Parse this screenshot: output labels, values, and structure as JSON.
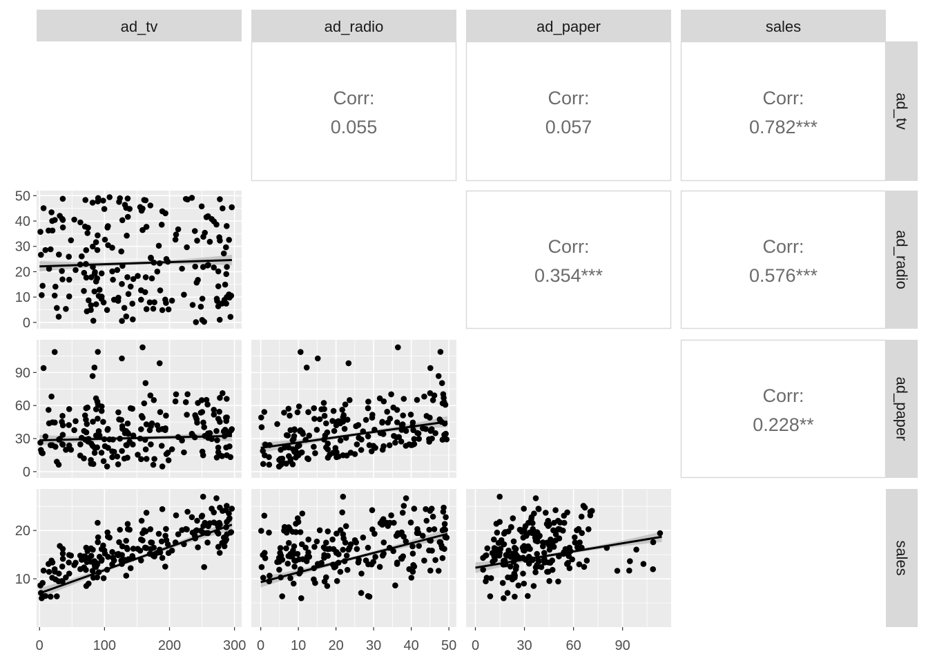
{
  "chart_data": {
    "type": "scatter",
    "variables": [
      "ad_tv",
      "ad_radio",
      "ad_paper",
      "sales"
    ],
    "axis_ranges": {
      "ad_tv": [
        -4.5,
        311
      ],
      "ad_radio": [
        -2.5,
        52
      ],
      "ad_paper": [
        -5.7,
        119.7
      ],
      "sales": [
        0,
        28.6
      ]
    },
    "ticks": {
      "ad_tv": {
        "x": [
          "0",
          "100",
          "200",
          "300"
        ],
        "y": []
      },
      "ad_radio": {
        "x": [
          "0",
          "10",
          "20",
          "30",
          "40",
          "50"
        ],
        "y": [
          "0",
          "10",
          "20",
          "30",
          "40",
          "50"
        ]
      },
      "ad_paper": {
        "x": [
          "0",
          "30",
          "60",
          "90"
        ],
        "y": [
          "0",
          "30",
          "60",
          "90"
        ]
      },
      "sales": {
        "x": [],
        "y": [
          "10",
          "20"
        ]
      }
    },
    "correlations": [
      {
        "row": "ad_tv",
        "col": "ad_radio",
        "label": "Corr:",
        "value": "0.055"
      },
      {
        "row": "ad_tv",
        "col": "ad_paper",
        "label": "Corr:",
        "value": "0.057"
      },
      {
        "row": "ad_tv",
        "col": "sales",
        "label": "Corr:",
        "value": "0.782***"
      },
      {
        "row": "ad_radio",
        "col": "ad_paper",
        "label": "Corr:",
        "value": "0.354***"
      },
      {
        "row": "ad_radio",
        "col": "sales",
        "label": "Corr:",
        "value": "0.576***"
      },
      {
        "row": "ad_paper",
        "col": "sales",
        "label": "Corr:",
        "value": "0.228**"
      }
    ],
    "scatter_panels": [
      {
        "x": "ad_tv",
        "y": "ad_radio",
        "trend": [
          [
            0,
            22.1
          ],
          [
            296,
            24.6
          ]
        ]
      },
      {
        "x": "ad_tv",
        "y": "ad_paper",
        "trend": [
          [
            0,
            28.5
          ],
          [
            296,
            32.4
          ]
        ]
      },
      {
        "x": "ad_radio",
        "y": "ad_paper",
        "trend": [
          [
            0,
            21.6
          ],
          [
            49.6,
            45.4
          ]
        ]
      },
      {
        "x": "ad_tv",
        "y": "sales",
        "trend": [
          [
            0,
            7.0
          ],
          [
            296,
            21.2
          ]
        ]
      },
      {
        "x": "ad_radio",
        "y": "sales",
        "trend": [
          [
            0,
            9.3
          ],
          [
            49.6,
            19.3
          ]
        ]
      },
      {
        "x": "ad_paper",
        "y": "sales",
        "trend": [
          [
            0,
            12.3
          ],
          [
            114,
            18.7
          ]
        ]
      }
    ],
    "grid": true,
    "smoother": "linear fit with grey confidence band",
    "point_color": "#000000",
    "panel_background": "#ebebeb",
    "strip_background": "#d9d9d9",
    "n_points_per_panel": 200
  }
}
